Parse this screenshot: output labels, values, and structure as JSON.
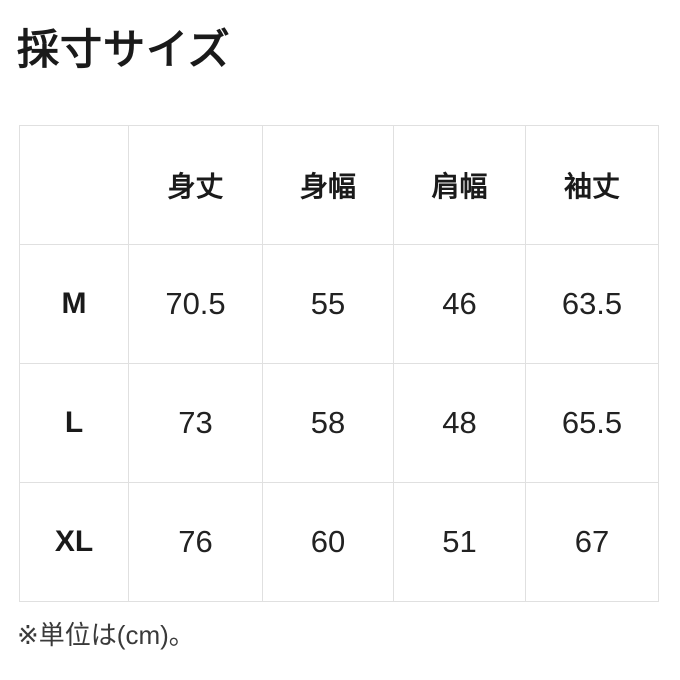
{
  "page_title": "採寸サイズ",
  "chart_data": {
    "type": "table",
    "title": "採寸サイズ",
    "columns": [
      "",
      "身丈",
      "身幅",
      "肩幅",
      "袖丈"
    ],
    "rows": [
      [
        "M",
        "70.5",
        "55",
        "46",
        "63.5"
      ],
      [
        "L",
        "73",
        "58",
        "48",
        "65.5"
      ],
      [
        "XL",
        "76",
        "60",
        "51",
        "67"
      ]
    ],
    "note": "※単位は(cm)。",
    "unit": "cm",
    "layout": {
      "grid": "light-gray 1px borders, all cells",
      "header_row": "bold, centered",
      "row_label_column": "bold, centered"
    }
  },
  "colors": {
    "text": "#1a1a1a",
    "value_text": "#222222",
    "footnote_text": "#3a3a3a",
    "border": "#e0e0e0",
    "background": "#ffffff"
  }
}
